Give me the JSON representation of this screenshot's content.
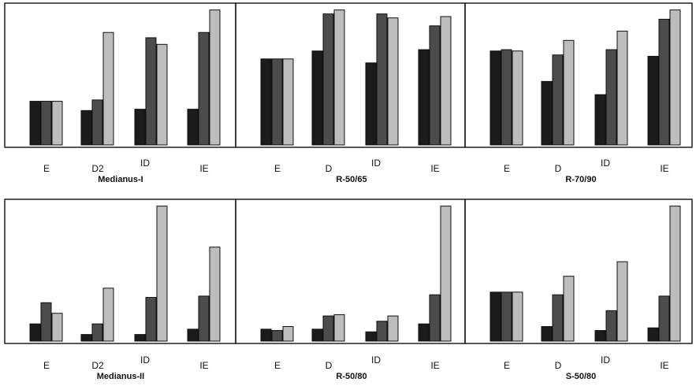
{
  "figure": {
    "bar_colors": [
      "#1b1b1b",
      "#4c4c4c",
      "#bdbdbd"
    ],
    "frame_color": "#111111"
  },
  "chart_data": [
    {
      "type": "bar",
      "title": "Medianus-I",
      "categories": [
        "E",
        "D2",
        "ID",
        "IE"
      ],
      "ylim": [
        0,
        100
      ],
      "series": [
        {
          "values": [
            33,
            26,
            27,
            27
          ]
        },
        {
          "values": [
            33,
            34,
            81,
            85
          ]
        },
        {
          "values": [
            33,
            85,
            76,
            102
          ]
        }
      ]
    },
    {
      "type": "bar",
      "title": "R-50/65",
      "categories": [
        "E",
        "D",
        "ID",
        "IE"
      ],
      "ylim": [
        0,
        100
      ],
      "series": [
        {
          "values": [
            65,
            71,
            62,
            72
          ]
        },
        {
          "values": [
            65,
            99,
            99,
            90
          ]
        },
        {
          "values": [
            65,
            102,
            96,
            97
          ]
        }
      ]
    },
    {
      "type": "bar",
      "title": "R-70/90",
      "categories": [
        "E",
        "D",
        "ID",
        "IE"
      ],
      "ylim": [
        0,
        100
      ],
      "series": [
        {
          "values": [
            71,
            48,
            38,
            67
          ]
        },
        {
          "values": [
            72,
            68,
            72,
            95
          ]
        },
        {
          "values": [
            71,
            79,
            86,
            102
          ]
        }
      ]
    },
    {
      "type": "bar",
      "title": "Medianus-II",
      "categories": [
        "E",
        "D2",
        "ID",
        "IE"
      ],
      "ylim": [
        0,
        100
      ],
      "series": [
        {
          "values": [
            13,
            5,
            5,
            9
          ]
        },
        {
          "values": [
            29,
            13,
            33,
            34
          ]
        },
        {
          "values": [
            21,
            40,
            102,
            71
          ]
        }
      ]
    },
    {
      "type": "bar",
      "title": "R-50/80",
      "categories": [
        "E",
        "D",
        "ID",
        "IE"
      ],
      "ylim": [
        0,
        100
      ],
      "series": [
        {
          "values": [
            9,
            9,
            7,
            13
          ]
        },
        {
          "values": [
            8,
            19,
            15,
            35
          ]
        },
        {
          "values": [
            11,
            20,
            19,
            102
          ]
        }
      ]
    },
    {
      "type": "bar",
      "title": "S-50/80",
      "categories": [
        "E",
        "D",
        "ID",
        "IE"
      ],
      "ylim": [
        0,
        100
      ],
      "series": [
        {
          "values": [
            37,
            11,
            8,
            10
          ]
        },
        {
          "values": [
            37,
            35,
            23,
            34
          ]
        },
        {
          "values": [
            37,
            49,
            60,
            102
          ]
        }
      ]
    }
  ]
}
